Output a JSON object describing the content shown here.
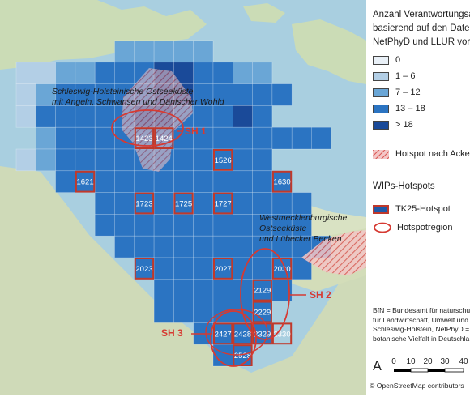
{
  "legend": {
    "title_lines": [
      "Anzahl Verantwortungsa",
      "basierend auf den Date",
      "NetPhyD und LLUR vor"
    ],
    "classes": [
      {
        "label": "0",
        "color": "#e9f0f7"
      },
      {
        "label": "1 – 6",
        "color": "#b3cfe6"
      },
      {
        "label": "7 – 12",
        "color": "#6aa6d6"
      },
      {
        "label": "13 – 18",
        "color": "#2b74c2"
      },
      {
        "label": "> 18",
        "color": "#1a4a99"
      }
    ],
    "hotspot_acker": "Hotspot nach Acker",
    "wips_title": "WIPs-Hotspots",
    "tk25_hotspot": "TK25-Hotspot",
    "hotspotregion": "Hotspotregion",
    "note_lines": [
      "BfN = Bundesamt für naturschutz",
      "für Landwirtschaft, Umwelt und",
      "Schleswig-Holstein, NetPhyD =",
      "botanische Vielfalt in Deutschla"
    ],
    "scale_ticks": [
      "0",
      "10",
      "20",
      "30",
      "40"
    ],
    "credit": "© OpenStreetMap contributors"
  },
  "map": {
    "region_labels": {
      "sh_ostsee_1": "Schleswig-Holsteinische Ostseeküste",
      "sh_ostsee_2": "mit Angeln, Schwansen und Dänischer Wohld",
      "mv_1": "Westmecklenburgische",
      "mv_2": "Ostseeküste",
      "mv_3": "und Lübecker Becken"
    },
    "hotspot_names": [
      "SH 1",
      "SH 2",
      "SH 3"
    ],
    "tk25_cells": [
      "1423",
      "1424",
      "1526",
      "1621",
      "1630",
      "1723",
      "1725",
      "1727",
      "2023",
      "2027",
      "2030",
      "2129",
      "2229",
      "2329",
      "2330",
      "2427",
      "2428",
      "2528"
    ]
  }
}
